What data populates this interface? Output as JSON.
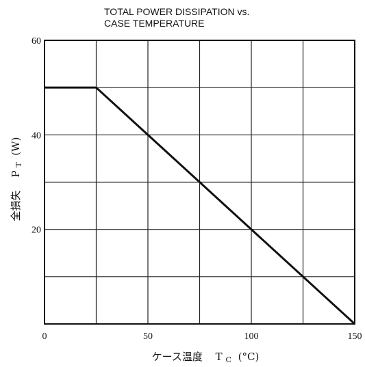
{
  "chart_data": {
    "type": "line",
    "title_lines": [
      "TOTAL POWER DISSIPATION vs.",
      "CASE TEMPERATURE"
    ],
    "xlabel_text": "ケース温度",
    "xlabel_symbol": "T",
    "xlabel_sub": "C",
    "xlabel_unit": "(°C)",
    "ylabel_text": "全損失",
    "ylabel_symbol": "P",
    "ylabel_sub": "T",
    "ylabel_unit": "(W)",
    "xlim": [
      0,
      150
    ],
    "ylim": [
      0,
      60
    ],
    "xticks": [
      0,
      50,
      100,
      150
    ],
    "yticks": [
      20,
      40,
      60
    ],
    "x_gridlines": [
      0,
      25,
      50,
      75,
      100,
      125,
      150
    ],
    "y_gridlines": [
      0,
      10,
      20,
      30,
      40,
      50,
      60
    ],
    "grid": true,
    "series": [
      {
        "x": [
          0,
          25,
          150
        ],
        "y": [
          50,
          50,
          0
        ]
      }
    ],
    "colors": {
      "line": "#111111",
      "grid": "#222222"
    }
  }
}
